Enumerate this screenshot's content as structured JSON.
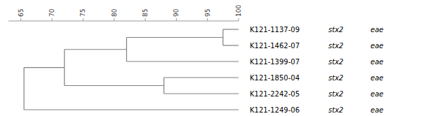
{
  "chart_data": {
    "type": "dendrogram",
    "categories": [
      "K121-1137-09",
      "K121-1462-07",
      "K121-1399-07",
      "K121-1850-04",
      "K121-2242-05",
      "K121-1249-06"
    ],
    "gene1": [
      "stx2",
      "stx2",
      "stx2",
      "stx2",
      "stx2",
      "stx2"
    ],
    "gene2": [
      "eae",
      "eae",
      "eae",
      "eae",
      "eae",
      "eae"
    ],
    "color": "#808080",
    "xlim": [
      63,
      100
    ],
    "xticks": [
      65,
      70,
      75,
      80,
      85,
      90,
      95,
      100
    ],
    "leaf_value": 100.0,
    "tree": {
      "value": 65.5,
      "children": [
        {
          "value": 72.0,
          "children": [
            {
              "value": 82.0,
              "children": [
                {
                  "value": 97.5,
                  "children": [
                    {
                      "leaf": 0
                    },
                    {
                      "leaf": 1
                    }
                  ]
                },
                {
                  "leaf": 2
                }
              ]
            },
            {
              "value": 88.0,
              "children": [
                {
                  "leaf": 3
                },
                {
                  "leaf": 4
                }
              ]
            }
          ]
        },
        {
          "leaf": 5
        }
      ]
    }
  }
}
